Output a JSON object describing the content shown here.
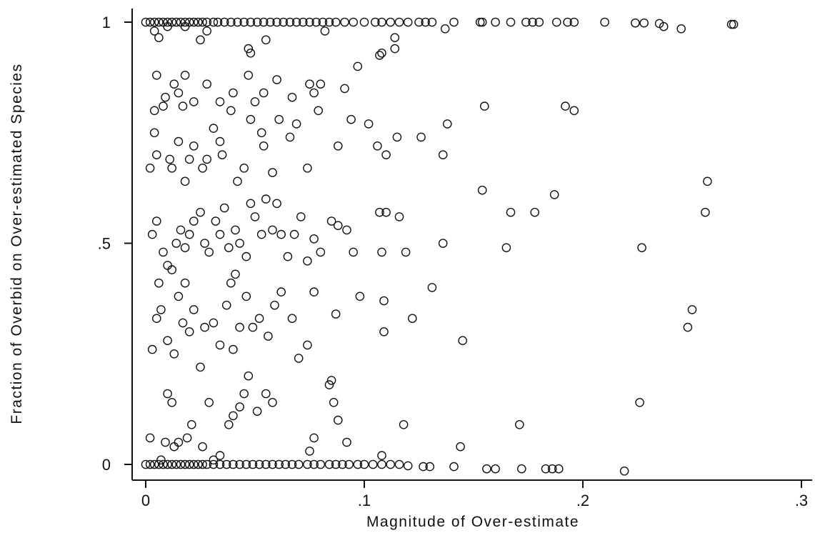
{
  "chart_data": {
    "type": "scatter",
    "xlabel": "Magnitude of Over-estimate",
    "ylabel": "Fraction of Overbid on Over-estimated Species",
    "xlim": [
      0,
      0.3
    ],
    "ylim": [
      0,
      1
    ],
    "x_ticks": [
      {
        "value": 0,
        "label": "0"
      },
      {
        "value": 0.1,
        "label": ".1"
      },
      {
        "value": 0.2,
        "label": ".2"
      },
      {
        "value": 0.3,
        "label": ".3"
      }
    ],
    "y_ticks": [
      {
        "value": 0,
        "label": "0"
      },
      {
        "value": 0.5,
        "label": ".5"
      },
      {
        "value": 1,
        "label": "1"
      }
    ],
    "marker": "hollow-circle",
    "grid": false,
    "legend": "none",
    "series": [
      {
        "points": [
          [
            0.0,
            1.0
          ],
          [
            0.002,
            1.0
          ],
          [
            0.004,
            1.0
          ],
          [
            0.006,
            1.0
          ],
          [
            0.008,
            1.0
          ],
          [
            0.01,
            1.0
          ],
          [
            0.012,
            1.0
          ],
          [
            0.014,
            1.0
          ],
          [
            0.016,
            1.0
          ],
          [
            0.018,
            1.0
          ],
          [
            0.02,
            1.0
          ],
          [
            0.022,
            1.0
          ],
          [
            0.024,
            1.0
          ],
          [
            0.026,
            1.0
          ],
          [
            0.028,
            1.0
          ],
          [
            0.031,
            1.0
          ],
          [
            0.033,
            1.0
          ],
          [
            0.036,
            1.0
          ],
          [
            0.039,
            1.0
          ],
          [
            0.042,
            1.0
          ],
          [
            0.045,
            1.0
          ],
          [
            0.048,
            1.0
          ],
          [
            0.051,
            1.0
          ],
          [
            0.054,
            1.0
          ],
          [
            0.057,
            1.0
          ],
          [
            0.06,
            1.0
          ],
          [
            0.063,
            1.0
          ],
          [
            0.066,
            1.0
          ],
          [
            0.069,
            1.0
          ],
          [
            0.072,
            1.0
          ],
          [
            0.075,
            1.0
          ],
          [
            0.078,
            1.0
          ],
          [
            0.081,
            1.0
          ],
          [
            0.084,
            1.0
          ],
          [
            0.087,
            1.0
          ],
          [
            0.091,
            1.0
          ],
          [
            0.095,
            1.0
          ],
          [
            0.1,
            1.0
          ],
          [
            0.105,
            1.0
          ],
          [
            0.108,
            1.0
          ],
          [
            0.112,
            1.0
          ],
          [
            0.116,
            1.0
          ],
          [
            0.12,
            1.0
          ],
          [
            0.125,
            1.0
          ],
          [
            0.128,
            1.0
          ],
          [
            0.131,
            1.0
          ],
          [
            0.141,
            1.0
          ],
          [
            0.153,
            1.0
          ],
          [
            0.154,
            1.0
          ],
          [
            0.16,
            1.0
          ],
          [
            0.167,
            1.0
          ],
          [
            0.174,
            1.0
          ],
          [
            0.177,
            1.0
          ],
          [
            0.18,
            1.0
          ],
          [
            0.188,
            1.0
          ],
          [
            0.193,
            1.0
          ],
          [
            0.196,
            1.0
          ],
          [
            0.21,
            1.0
          ],
          [
            0.224,
            0.998
          ],
          [
            0.228,
            0.998
          ],
          [
            0.235,
            0.997
          ],
          [
            0.237,
            0.99
          ],
          [
            0.245,
            0.985
          ],
          [
            0.268,
            0.995
          ],
          [
            0.269,
            0.995
          ],
          [
            0.004,
            0.98
          ],
          [
            0.006,
            0.965
          ],
          [
            0.01,
            0.99
          ],
          [
            0.018,
            0.99
          ],
          [
            0.025,
            0.96
          ],
          [
            0.028,
            0.98
          ],
          [
            0.047,
            0.94
          ],
          [
            0.048,
            0.93
          ],
          [
            0.055,
            0.96
          ],
          [
            0.082,
            0.98
          ],
          [
            0.108,
            0.93
          ],
          [
            0.107,
            0.925
          ],
          [
            0.114,
            0.94
          ],
          [
            0.114,
            0.965
          ],
          [
            0.137,
            0.985
          ],
          [
            0.005,
            0.88
          ],
          [
            0.009,
            0.83
          ],
          [
            0.013,
            0.86
          ],
          [
            0.015,
            0.84
          ],
          [
            0.018,
            0.88
          ],
          [
            0.022,
            0.82
          ],
          [
            0.028,
            0.86
          ],
          [
            0.034,
            0.82
          ],
          [
            0.04,
            0.84
          ],
          [
            0.047,
            0.88
          ],
          [
            0.054,
            0.84
          ],
          [
            0.06,
            0.87
          ],
          [
            0.067,
            0.83
          ],
          [
            0.075,
            0.86
          ],
          [
            0.077,
            0.84
          ],
          [
            0.08,
            0.86
          ],
          [
            0.091,
            0.85
          ],
          [
            0.097,
            0.9
          ],
          [
            0.008,
            0.81
          ],
          [
            0.017,
            0.81
          ],
          [
            0.002,
            0.67
          ],
          [
            0.004,
            0.8
          ],
          [
            0.004,
            0.75
          ],
          [
            0.005,
            0.7
          ],
          [
            0.011,
            0.69
          ],
          [
            0.012,
            0.67
          ],
          [
            0.015,
            0.73
          ],
          [
            0.018,
            0.64
          ],
          [
            0.02,
            0.69
          ],
          [
            0.022,
            0.72
          ],
          [
            0.026,
            0.67
          ],
          [
            0.028,
            0.69
          ],
          [
            0.031,
            0.76
          ],
          [
            0.034,
            0.73
          ],
          [
            0.035,
            0.7
          ],
          [
            0.039,
            0.8
          ],
          [
            0.042,
            0.64
          ],
          [
            0.045,
            0.67
          ],
          [
            0.048,
            0.78
          ],
          [
            0.05,
            0.82
          ],
          [
            0.053,
            0.75
          ],
          [
            0.054,
            0.72
          ],
          [
            0.058,
            0.66
          ],
          [
            0.061,
            0.78
          ],
          [
            0.066,
            0.74
          ],
          [
            0.069,
            0.77
          ],
          [
            0.074,
            0.67
          ],
          [
            0.079,
            0.8
          ],
          [
            0.088,
            0.72
          ],
          [
            0.094,
            0.78
          ],
          [
            0.102,
            0.77
          ],
          [
            0.106,
            0.72
          ],
          [
            0.11,
            0.7
          ],
          [
            0.115,
            0.74
          ],
          [
            0.126,
            0.74
          ],
          [
            0.136,
            0.7
          ],
          [
            0.138,
            0.77
          ],
          [
            0.155,
            0.81
          ],
          [
            0.192,
            0.81
          ],
          [
            0.196,
            0.8
          ],
          [
            0.003,
            0.52
          ],
          [
            0.005,
            0.55
          ],
          [
            0.008,
            0.48
          ],
          [
            0.01,
            0.45
          ],
          [
            0.012,
            0.44
          ],
          [
            0.014,
            0.5
          ],
          [
            0.016,
            0.53
          ],
          [
            0.018,
            0.49
          ],
          [
            0.02,
            0.52
          ],
          [
            0.022,
            0.55
          ],
          [
            0.025,
            0.57
          ],
          [
            0.027,
            0.5
          ],
          [
            0.029,
            0.48
          ],
          [
            0.032,
            0.55
          ],
          [
            0.034,
            0.52
          ],
          [
            0.036,
            0.58
          ],
          [
            0.038,
            0.49
          ],
          [
            0.041,
            0.53
          ],
          [
            0.043,
            0.5
          ],
          [
            0.046,
            0.47
          ],
          [
            0.048,
            0.59
          ],
          [
            0.05,
            0.56
          ],
          [
            0.053,
            0.52
          ],
          [
            0.055,
            0.6
          ],
          [
            0.058,
            0.53
          ],
          [
            0.06,
            0.59
          ],
          [
            0.062,
            0.52
          ],
          [
            0.065,
            0.47
          ],
          [
            0.068,
            0.52
          ],
          [
            0.071,
            0.56
          ],
          [
            0.074,
            0.46
          ],
          [
            0.077,
            0.51
          ],
          [
            0.08,
            0.48
          ],
          [
            0.085,
            0.55
          ],
          [
            0.088,
            0.54
          ],
          [
            0.092,
            0.53
          ],
          [
            0.095,
            0.48
          ],
          [
            0.107,
            0.57
          ],
          [
            0.108,
            0.48
          ],
          [
            0.11,
            0.57
          ],
          [
            0.116,
            0.56
          ],
          [
            0.119,
            0.48
          ],
          [
            0.136,
            0.5
          ],
          [
            0.154,
            0.62
          ],
          [
            0.165,
            0.49
          ],
          [
            0.167,
            0.57
          ],
          [
            0.178,
            0.57
          ],
          [
            0.187,
            0.61
          ],
          [
            0.256,
            0.57
          ],
          [
            0.257,
            0.64
          ],
          [
            0.003,
            0.26
          ],
          [
            0.005,
            0.33
          ],
          [
            0.007,
            0.35
          ],
          [
            0.01,
            0.28
          ],
          [
            0.013,
            0.25
          ],
          [
            0.015,
            0.38
          ],
          [
            0.017,
            0.32
          ],
          [
            0.02,
            0.3
          ],
          [
            0.022,
            0.35
          ],
          [
            0.025,
            0.22
          ],
          [
            0.027,
            0.31
          ],
          [
            0.031,
            0.32
          ],
          [
            0.034,
            0.27
          ],
          [
            0.037,
            0.36
          ],
          [
            0.04,
            0.26
          ],
          [
            0.043,
            0.31
          ],
          [
            0.046,
            0.38
          ],
          [
            0.049,
            0.31
          ],
          [
            0.052,
            0.33
          ],
          [
            0.056,
            0.29
          ],
          [
            0.059,
            0.36
          ],
          [
            0.062,
            0.39
          ],
          [
            0.067,
            0.33
          ],
          [
            0.07,
            0.24
          ],
          [
            0.074,
            0.27
          ],
          [
            0.077,
            0.39
          ],
          [
            0.087,
            0.34
          ],
          [
            0.098,
            0.38
          ],
          [
            0.109,
            0.3
          ],
          [
            0.109,
            0.37
          ],
          [
            0.122,
            0.33
          ],
          [
            0.131,
            0.4
          ],
          [
            0.145,
            0.28
          ],
          [
            0.248,
            0.31
          ],
          [
            0.25,
            0.35
          ],
          [
            0.227,
            0.49
          ],
          [
            0.006,
            0.41
          ],
          [
            0.018,
            0.41
          ],
          [
            0.039,
            0.41
          ],
          [
            0.041,
            0.43
          ],
          [
            0.002,
            0.06
          ],
          [
            0.007,
            0.01
          ],
          [
            0.009,
            0.05
          ],
          [
            0.01,
            0.16
          ],
          [
            0.012,
            0.14
          ],
          [
            0.013,
            0.04
          ],
          [
            0.015,
            0.05
          ],
          [
            0.019,
            0.06
          ],
          [
            0.021,
            0.09
          ],
          [
            0.026,
            0.04
          ],
          [
            0.029,
            0.14
          ],
          [
            0.031,
            0.01
          ],
          [
            0.034,
            0.02
          ],
          [
            0.038,
            0.09
          ],
          [
            0.04,
            0.11
          ],
          [
            0.043,
            0.13
          ],
          [
            0.045,
            0.16
          ],
          [
            0.047,
            0.2
          ],
          [
            0.051,
            0.12
          ],
          [
            0.055,
            0.16
          ],
          [
            0.058,
            0.14
          ],
          [
            0.075,
            0.03
          ],
          [
            0.077,
            0.06
          ],
          [
            0.084,
            0.18
          ],
          [
            0.085,
            0.19
          ],
          [
            0.086,
            0.14
          ],
          [
            0.088,
            0.1
          ],
          [
            0.092,
            0.05
          ],
          [
            0.108,
            0.02
          ],
          [
            0.118,
            0.09
          ],
          [
            0.144,
            0.04
          ],
          [
            0.171,
            0.09
          ],
          [
            0.226,
            0.14
          ],
          [
            0.0,
            0.0
          ],
          [
            0.002,
            0.0
          ],
          [
            0.004,
            0.0
          ],
          [
            0.006,
            0.0
          ],
          [
            0.008,
            0.0
          ],
          [
            0.01,
            0.0
          ],
          [
            0.012,
            0.0
          ],
          [
            0.014,
            0.0
          ],
          [
            0.016,
            0.0
          ],
          [
            0.018,
            0.0
          ],
          [
            0.02,
            0.0
          ],
          [
            0.022,
            0.0
          ],
          [
            0.024,
            0.0
          ],
          [
            0.026,
            0.0
          ],
          [
            0.028,
            0.0
          ],
          [
            0.031,
            0.0
          ],
          [
            0.034,
            0.0
          ],
          [
            0.037,
            0.0
          ],
          [
            0.04,
            0.0
          ],
          [
            0.043,
            0.0
          ],
          [
            0.046,
            0.0
          ],
          [
            0.049,
            0.0
          ],
          [
            0.052,
            0.0
          ],
          [
            0.055,
            0.0
          ],
          [
            0.058,
            0.0
          ],
          [
            0.061,
            0.0
          ],
          [
            0.064,
            0.0
          ],
          [
            0.067,
            0.0
          ],
          [
            0.07,
            0.0
          ],
          [
            0.074,
            0.0
          ],
          [
            0.077,
            0.0
          ],
          [
            0.08,
            0.0
          ],
          [
            0.084,
            0.0
          ],
          [
            0.087,
            0.0
          ],
          [
            0.09,
            0.0
          ],
          [
            0.093,
            0.0
          ],
          [
            0.097,
            0.0
          ],
          [
            0.1,
            0.0
          ],
          [
            0.104,
            0.0
          ],
          [
            0.108,
            0.0
          ],
          [
            0.112,
            0.0
          ],
          [
            0.116,
            0.0
          ],
          [
            0.12,
            -0.003
          ],
          [
            0.127,
            -0.005
          ],
          [
            0.13,
            -0.005
          ],
          [
            0.141,
            -0.005
          ],
          [
            0.156,
            -0.01
          ],
          [
            0.16,
            -0.01
          ],
          [
            0.172,
            -0.01
          ],
          [
            0.183,
            -0.01
          ],
          [
            0.186,
            -0.01
          ],
          [
            0.189,
            -0.01
          ],
          [
            0.219,
            -0.015
          ]
        ]
      }
    ]
  }
}
